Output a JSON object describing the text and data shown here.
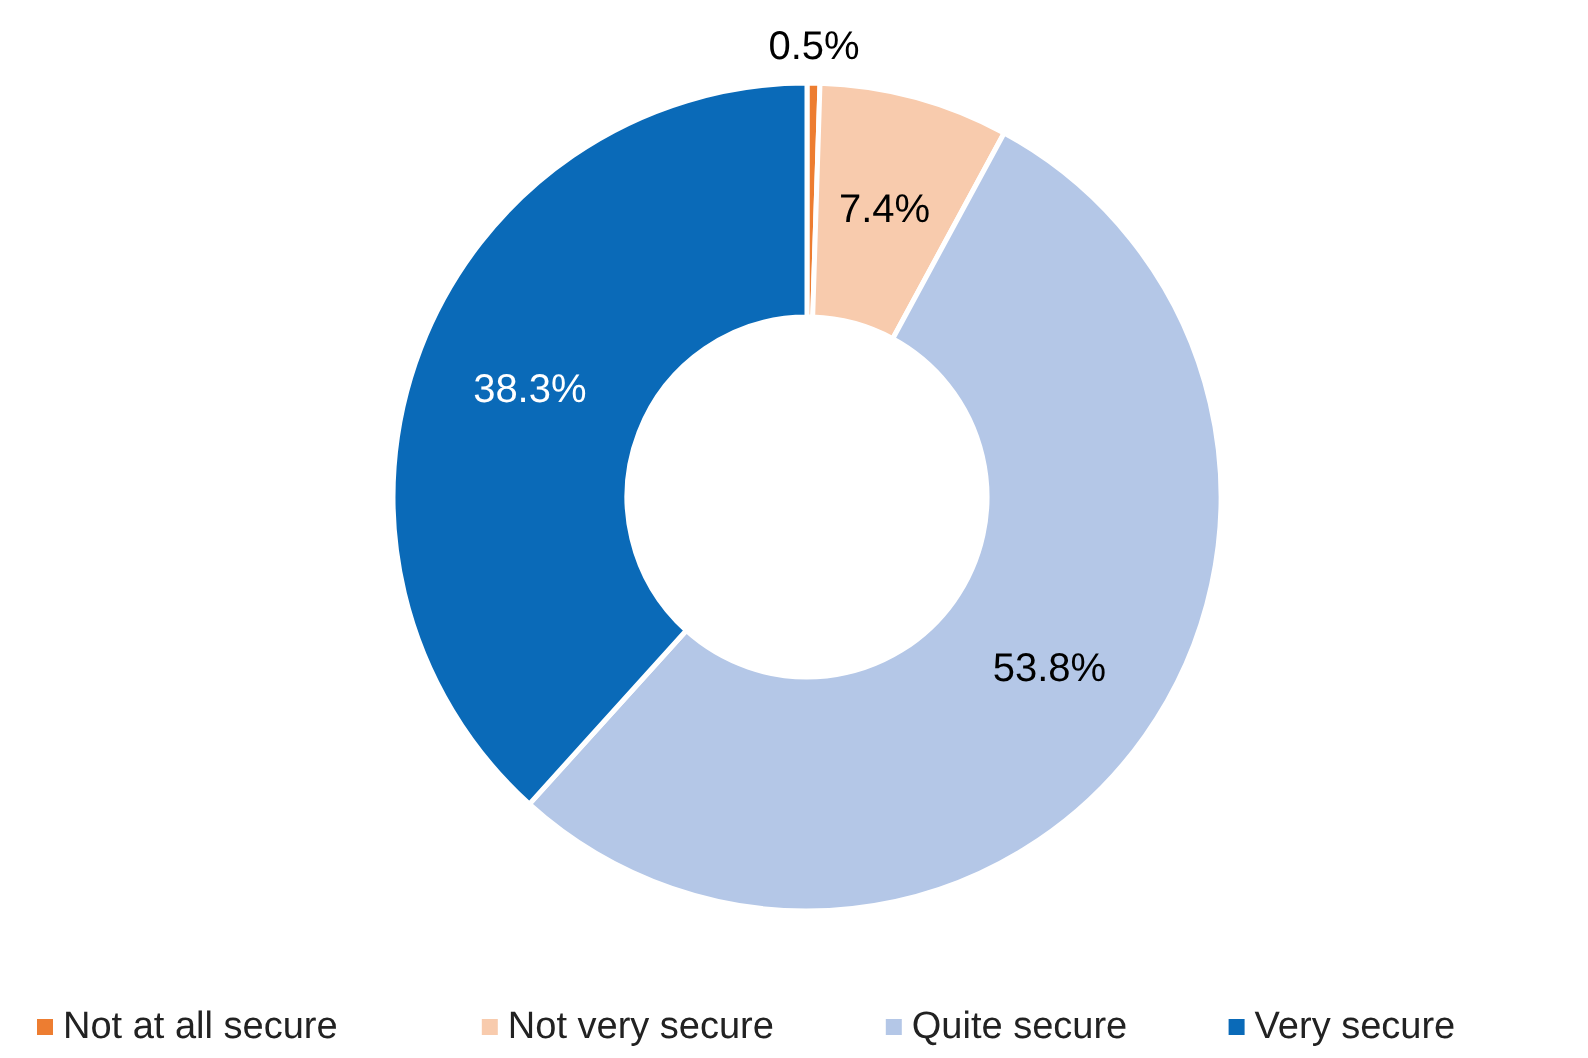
{
  "chart_data": {
    "type": "donut",
    "categories": [
      "Not at all secure",
      "Not very secure",
      "Quite secure",
      "Very secure"
    ],
    "values": [
      0.5,
      7.4,
      53.8,
      38.3
    ],
    "colors": [
      "#ed7d31",
      "#f8cbad",
      "#b4c7e7",
      "#0a6ab8"
    ],
    "value_labels": [
      "0.5%",
      "7.4%",
      "53.8%",
      "38.3%"
    ],
    "legend": "bottom"
  }
}
